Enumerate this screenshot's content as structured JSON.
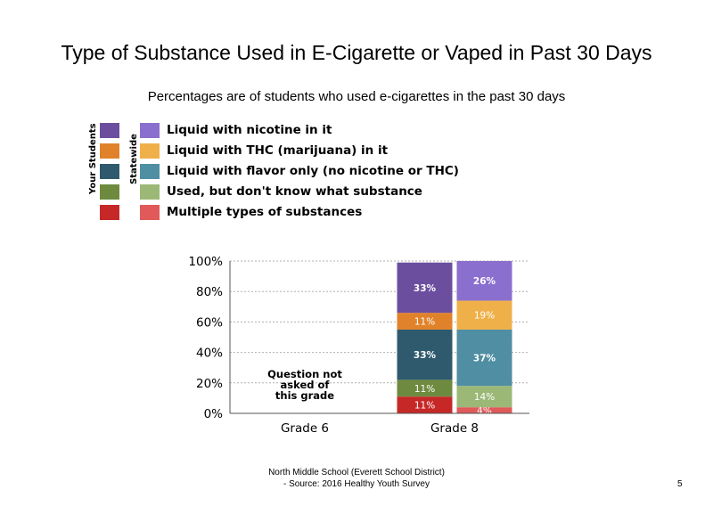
{
  "title": "Type of Substance Used in E-Cigarette or Vaped in Past 30 Days",
  "subtitle": "Percentages are of students who used e-cigarettes in the past 30 days",
  "legend": {
    "your_students_label": "Your Students",
    "statewide_label": "Statewide",
    "items": [
      {
        "label": "Liquid with nicotine in it",
        "your_color": "#6b4f9e",
        "state_color": "#8b6fcf"
      },
      {
        "label": "Liquid with THC (marijuana) in it",
        "your_color": "#e0822a",
        "state_color": "#efb04a"
      },
      {
        "label": "Liquid with flavor only (no nicotine or THC)",
        "your_color": "#2f5a6e",
        "state_color": "#4f8ea3"
      },
      {
        "label": "Used, but don't know what substance",
        "your_color": "#6e8a3e",
        "state_color": "#9cb877"
      },
      {
        "label": "Multiple types of substances",
        "your_color": "#c62828",
        "state_color": "#e05a5a"
      }
    ]
  },
  "chart_data": {
    "type": "bar",
    "stacked": true,
    "categories": [
      "Grade 6",
      "Grade 8"
    ],
    "y_tick_labels": [
      "0%",
      "20%",
      "40%",
      "60%",
      "80%",
      "100%"
    ],
    "ylim": [
      0,
      100
    ],
    "grid": true,
    "note": "Question not asked of this grade",
    "bars": [
      {
        "category": "Grade 8",
        "group": "Your Students",
        "segments": [
          {
            "label": "Multiple types of substances",
            "value": 11,
            "text": "11%"
          },
          {
            "label": "Used, but don't know what substance",
            "value": 11,
            "text": "11%"
          },
          {
            "label": "Liquid with flavor only (no nicotine or THC)",
            "value": 33,
            "text": "33%"
          },
          {
            "label": "Liquid with THC (marijuana) in it",
            "value": 11,
            "text": "11%"
          },
          {
            "label": "Liquid with nicotine in it",
            "value": 33,
            "text": "33%"
          }
        ]
      },
      {
        "category": "Grade 8",
        "group": "Statewide",
        "segments": [
          {
            "label": "Multiple types of substances",
            "value": 4,
            "text": "4%"
          },
          {
            "label": "Used, but don't know what substance",
            "value": 14,
            "text": "14%"
          },
          {
            "label": "Liquid with flavor only (no nicotine or THC)",
            "value": 37,
            "text": "37%"
          },
          {
            "label": "Liquid with THC (marijuana) in it",
            "value": 19,
            "text": "19%"
          },
          {
            "label": "Liquid with nicotine in it",
            "value": 26,
            "text": "26%"
          }
        ]
      }
    ]
  },
  "footer": {
    "line1": "North Middle School (Everett School District)",
    "line2": "- Source: 2016 Healthy Youth Survey"
  },
  "page_number": "5"
}
